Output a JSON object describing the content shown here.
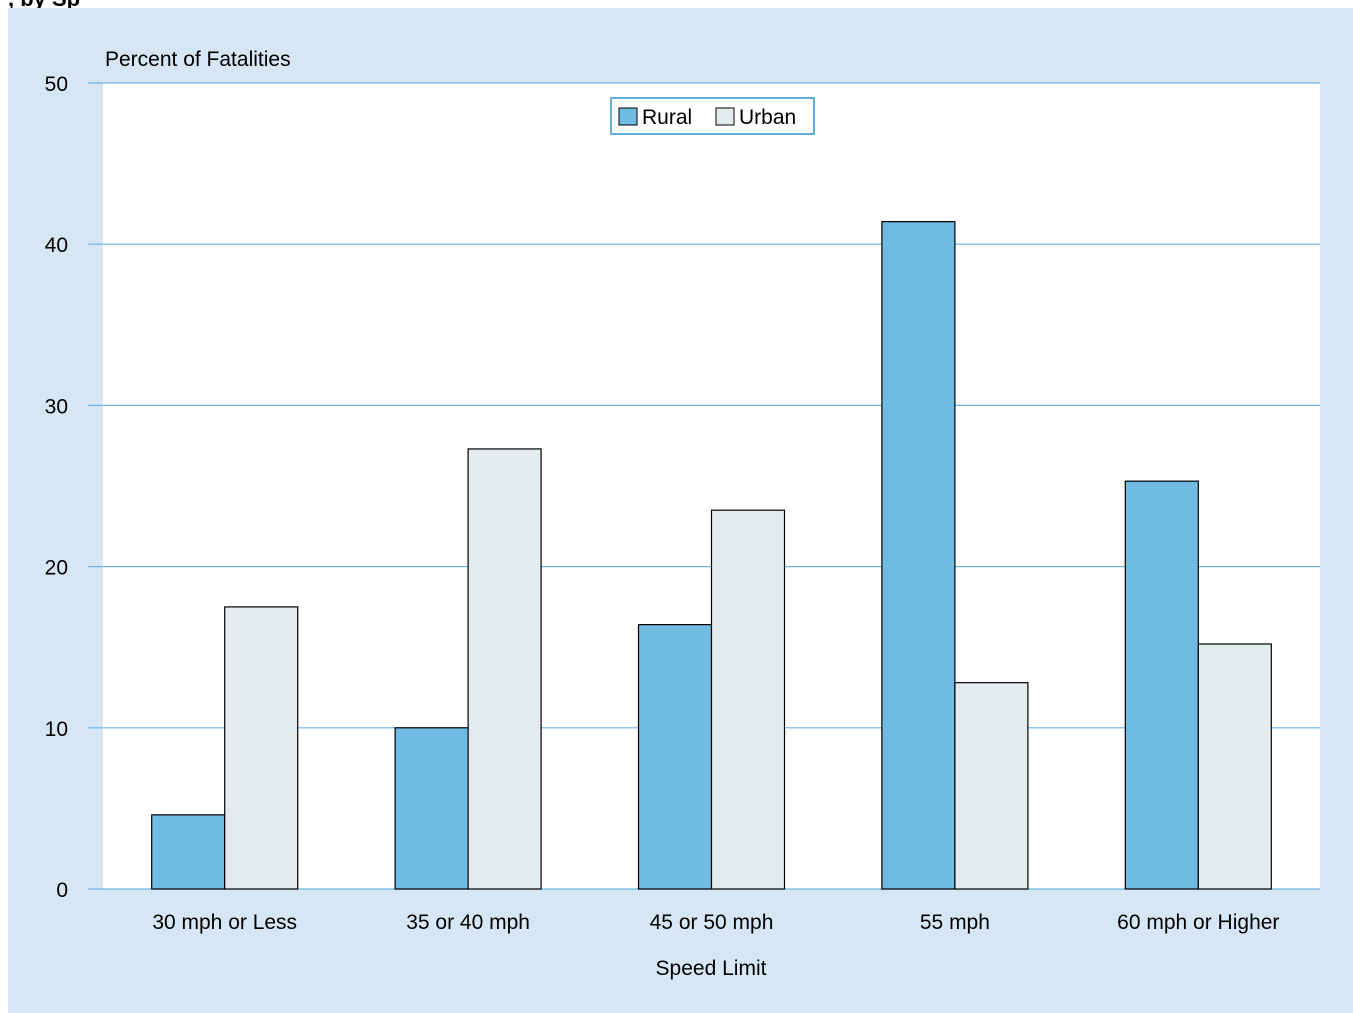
{
  "header": {
    "title_fragment": ", by Sp"
  },
  "chart_data": {
    "type": "bar",
    "ylabel": "Percent of Fatalities",
    "xlabel": "Speed Limit",
    "categories": [
      "30 mph or Less",
      "35 or 40 mph",
      "45 or 50 mph",
      "55 mph",
      "60 mph or Higher"
    ],
    "series": [
      {
        "name": "Rural",
        "values": [
          4.6,
          10.0,
          16.4,
          41.4,
          25.3
        ],
        "color": "#6fbbe2"
      },
      {
        "name": "Urban",
        "values": [
          17.5,
          27.3,
          23.5,
          12.8,
          15.2
        ],
        "color": "#e3ebee"
      }
    ],
    "ylim": [
      0,
      50
    ],
    "yticks": [
      0,
      10,
      20,
      30,
      40,
      50
    ],
    "grid": true,
    "legend_position": "top-center"
  }
}
